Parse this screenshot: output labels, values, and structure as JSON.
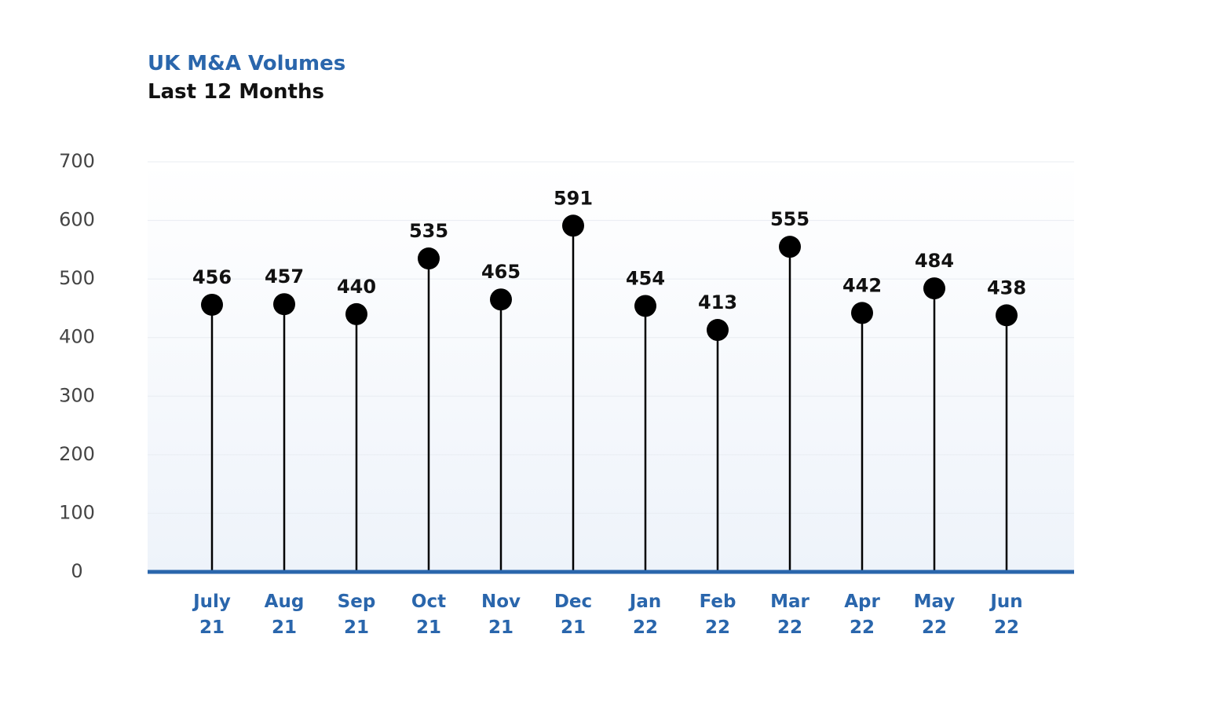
{
  "chart_data": {
    "type": "lollipop",
    "title": "UK M&A Volumes",
    "subtitle": "Last 12 Months",
    "categories": [
      "July 21",
      "Aug 21",
      "Sep 21",
      "Oct 21",
      "Nov 21",
      "Dec 21",
      "Jan 22",
      "Feb 22",
      "Mar 22",
      "Apr 22",
      "May 22",
      "Jun 22"
    ],
    "values": [
      456,
      457,
      440,
      535,
      465,
      591,
      454,
      413,
      555,
      442,
      484,
      438
    ],
    "color": "#000000",
    "axis_color": "#2a66ac",
    "ylim": [
      0,
      700
    ],
    "yticks": [
      0,
      100,
      200,
      300,
      400,
      500,
      600,
      700
    ],
    "grid": true
  }
}
